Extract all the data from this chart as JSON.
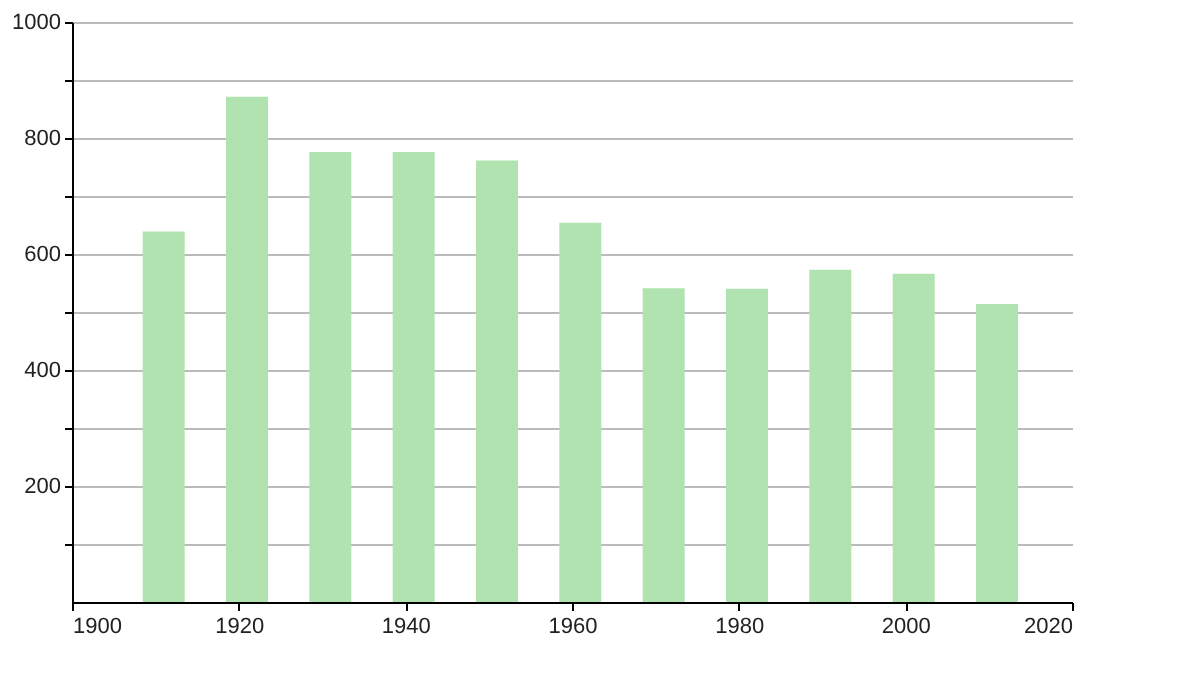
{
  "chart_data": {
    "type": "bar",
    "x": [
      1911,
      1921,
      1931,
      1941,
      1951,
      1961,
      1971,
      1981,
      1991,
      2001,
      2011
    ],
    "values": [
      639,
      871,
      776,
      776,
      761,
      654,
      541,
      540,
      573,
      566,
      514
    ],
    "color": "#b0e3b0",
    "xlim": [
      1900,
      2020
    ],
    "xticks": [
      1900,
      1920,
      1940,
      1960,
      1980,
      2000,
      2020
    ],
    "ylim": [
      0,
      1000
    ],
    "yticks": [
      {
        "value": 100,
        "label": null
      },
      200,
      {
        "value": 300,
        "label": null
      },
      400,
      {
        "value": 500,
        "label": null
      },
      600,
      {
        "value": 700,
        "label": null
      },
      800,
      {
        "value": 900,
        "label": null
      },
      1000
    ],
    "grid": "y"
  }
}
